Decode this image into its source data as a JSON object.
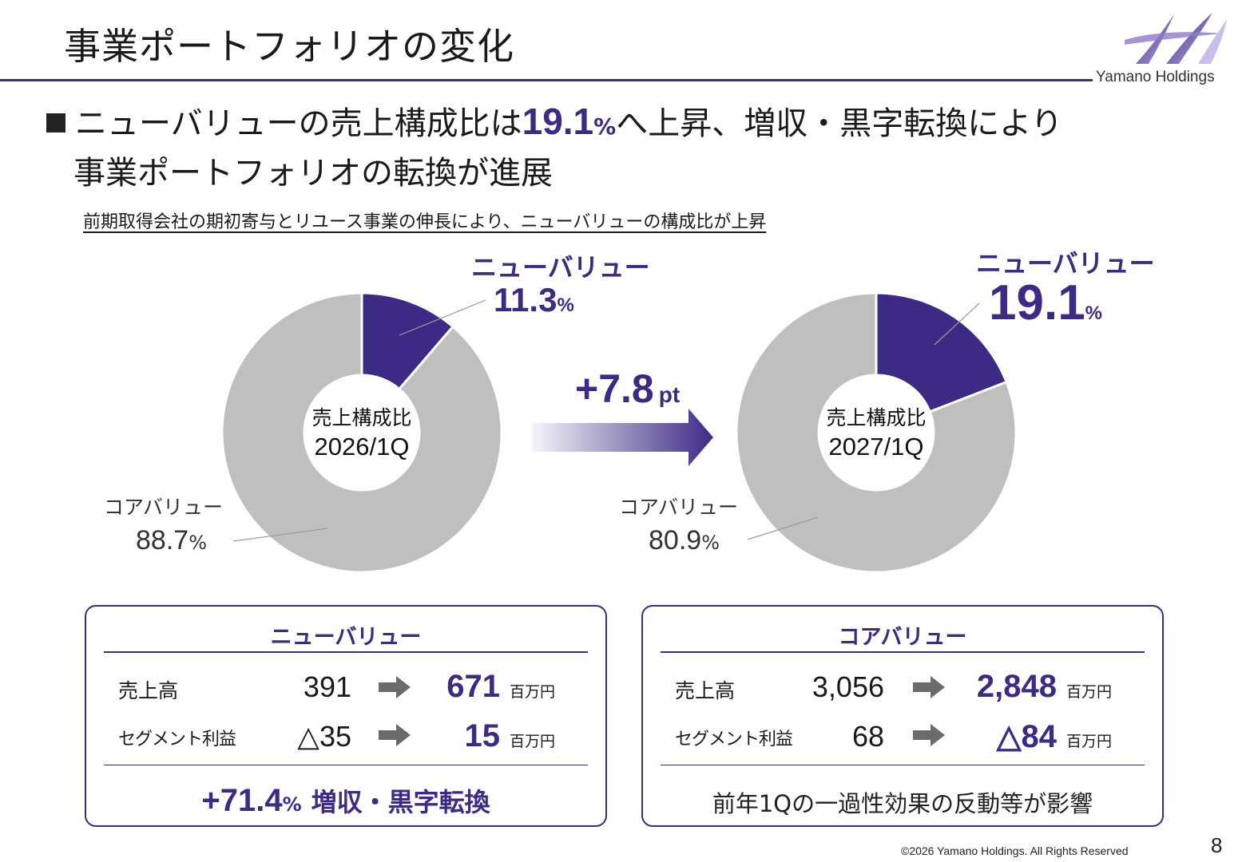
{
  "header": {
    "title": "事業ポートフォリオの変化",
    "logo_text": "Yamano Holdings"
  },
  "headline": {
    "part1": "ニューバリューの売上構成比は",
    "value": "19.1",
    "unit": "%",
    "part2": "へ上昇、増収・黒字転換により",
    "line2": "事業ポートフォリオの転換が進展"
  },
  "subline": "前期取得会社の期初寄与とリユース事業の伸長により、ニューバリューの構成比が上昇",
  "chart_data": [
    {
      "type": "pie",
      "title": "",
      "center_label": "売上構成比",
      "period": "2026/1Q",
      "categories": [
        "ニューバリュー",
        "コアバリュー"
      ],
      "values": [
        11.3,
        88.7
      ],
      "unit": "%",
      "colors": [
        "#3d2a85",
        "#bfbfbf"
      ]
    },
    {
      "type": "pie",
      "title": "",
      "center_label": "売上構成比",
      "period": "2027/1Q",
      "categories": [
        "ニューバリュー",
        "コアバリュー"
      ],
      "values": [
        19.1,
        80.9
      ],
      "unit": "%",
      "colors": [
        "#3d2a85",
        "#bfbfbf"
      ]
    }
  ],
  "change": {
    "value": "+7.8",
    "unit": "pt"
  },
  "new_value_box": {
    "title": "ニューバリュー",
    "rows": [
      {
        "label": "売上高",
        "from": "391",
        "to": "671",
        "unit": "百万円"
      },
      {
        "label": "セグメント利益",
        "from": "△35",
        "to": "15",
        "unit": "百万円"
      }
    ],
    "summary_value": "+71.4",
    "summary_unit": "%",
    "summary_text": "増収・黒字転換"
  },
  "core_value_box": {
    "title": "コアバリュー",
    "rows": [
      {
        "label": "売上高",
        "from": "3,056",
        "to": "2,848",
        "unit": "百万円"
      },
      {
        "label": "セグメント利益",
        "from": "68",
        "to": "△84",
        "unit": "百万円"
      }
    ],
    "summary_text": "前年1Qの一過性効果の反動等が影響"
  },
  "footer": {
    "copyright": "©2026 Yamano Holdings. All Rights Reserved",
    "page_number": "8"
  },
  "colors": {
    "accent": "#3d2a85",
    "core_gray": "#bfbfbf"
  }
}
